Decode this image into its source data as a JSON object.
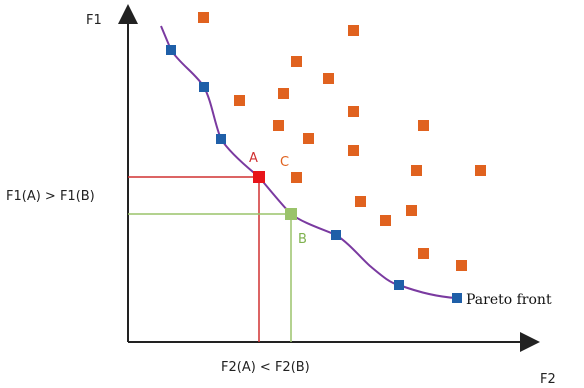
{
  "axes": {
    "y_label": "F1",
    "x_label": "F2"
  },
  "labels": {
    "f1_compare": "F1(A) > F1(B)",
    "f2_compare": "F2(A) < F2(B)",
    "point_a": "A",
    "point_b": "B",
    "point_c": "C",
    "pareto_front": "Pareto front"
  },
  "colors": {
    "axis": "#222222",
    "front_curve": "#7a3aa0",
    "front_points": "#1f5fa8",
    "dominated_points": "#e0621f",
    "point_a": "#e8141a",
    "point_b": "#9ac36a",
    "guide_a": "#d03030",
    "guide_b": "#9ac36a",
    "label_a": "#d03030",
    "label_b": "#7fb24f",
    "label_c": "#e0621f"
  }
}
